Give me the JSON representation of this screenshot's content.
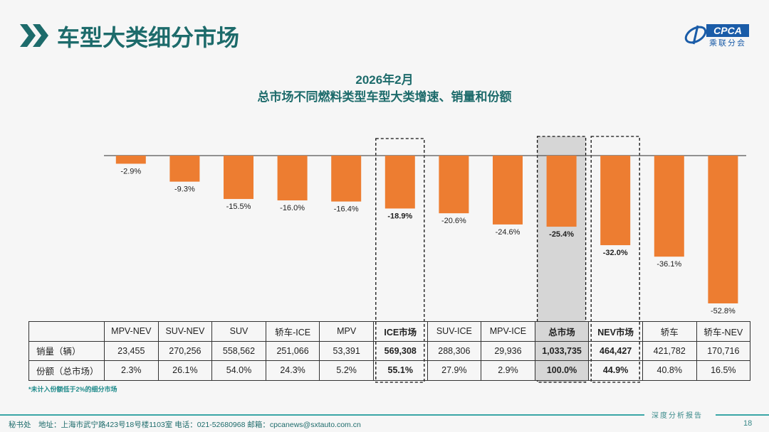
{
  "header": {
    "title": "车型大类细分市场",
    "logo_text": "CPCA",
    "logo_cn": "乘联分会"
  },
  "chart_data": {
    "type": "bar",
    "title": "2026年2月",
    "subtitle": "总市场不同燃料类型车型大类增速、销量和份额",
    "categories": [
      "MPV-NEV",
      "SUV-NEV",
      "SUV",
      "轿车-ICE",
      "MPV",
      "ICE市场",
      "SUV-ICE",
      "MPV-ICE",
      "总市场",
      "NEV市场",
      "轿车",
      "轿车-NEV"
    ],
    "values": [
      -2.9,
      -9.3,
      -15.5,
      -16.0,
      -16.4,
      -18.9,
      -20.6,
      -24.6,
      -25.4,
      -32.0,
      -36.1,
      -52.8
    ],
    "labels": [
      "-2.9%",
      "-9.3%",
      "-15.5%",
      "-16.0%",
      "-16.4%",
      "-18.9%",
      "-20.6%",
      "-24.6%",
      "-25.4%",
      "-32.0%",
      "-36.1%",
      "-52.8%"
    ],
    "highlighted": [
      "ICE市场",
      "总市场",
      "NEV市场"
    ],
    "bar_color": "#ed7d31",
    "ylim": [
      -55,
      0
    ]
  },
  "table": {
    "rows": [
      {
        "label": "销量（辆）",
        "values": [
          "23,455",
          "270,256",
          "558,562",
          "251,066",
          "53,391",
          "569,308",
          "288,306",
          "29,936",
          "1,033,735",
          "464,427",
          "421,782",
          "170,716"
        ]
      },
      {
        "label": "份额（总市场）",
        "values": [
          "2.3%",
          "26.1%",
          "54.0%",
          "24.3%",
          "5.2%",
          "55.1%",
          "27.9%",
          "2.9%",
          "100.0%",
          "44.9%",
          "40.8%",
          "16.5%"
        ]
      }
    ]
  },
  "note": "*未计入份额低于2%的细分市场",
  "footer": {
    "text": "秘书处　地址：上海市武宁路423号18号楼1103室  电话：021-52680968   邮箱：cpcanews@sxtauto.com.cn",
    "tag": "深度分析报告",
    "page": "18"
  }
}
